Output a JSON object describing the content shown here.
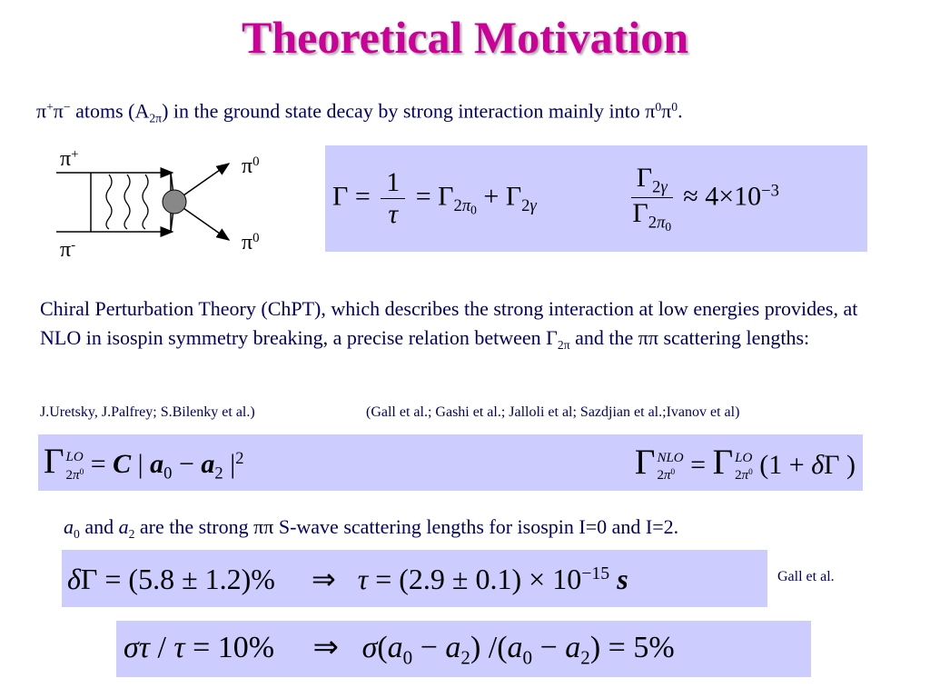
{
  "title": "Theoretical Motivation",
  "intro": [
    {
      "text": "π"
    },
    {
      "text": "+",
      "style": "sup"
    },
    {
      "text": "π"
    },
    {
      "text": "−",
      "style": "sup"
    },
    {
      "text": " atoms (A"
    },
    {
      "text": "2π",
      "style": "sub"
    },
    {
      "text": ") in the ground state decay by strong interaction mainly into π"
    },
    {
      "text": "0",
      "style": "sup"
    },
    {
      "text": "π"
    },
    {
      "text": "0",
      "style": "sup"
    },
    {
      "text": "."
    }
  ],
  "diagram": {
    "in_top": [
      {
        "text": "π"
      },
      {
        "text": "+",
        "style": "sup"
      }
    ],
    "in_bottom": [
      {
        "text": "π"
      },
      {
        "text": "-",
        "style": "sup"
      }
    ],
    "out_top": [
      {
        "text": "π"
      },
      {
        "text": "0",
        "style": "sup"
      }
    ],
    "out_bottom": [
      {
        "text": "π"
      },
      {
        "text": "0",
        "style": "sup"
      }
    ]
  },
  "eq_width": [
    {
      "text": "Γ = "
    },
    {
      "num": [
        {
          "text": "1"
        }
      ],
      "den": [
        {
          "text": "τ",
          "style": "i"
        }
      ]
    },
    {
      "text": " = Γ"
    },
    {
      "text": "2",
      "style": "sub"
    },
    {
      "text": "π",
      "style": "sub i"
    },
    {
      "text": "0",
      "style": "subsub"
    },
    {
      "text": " + Γ"
    },
    {
      "text": "2",
      "style": "sub"
    },
    {
      "text": "γ",
      "style": "sub i"
    }
  ],
  "eq_ratio": [
    {
      "num": [
        {
          "text": "Γ"
        },
        {
          "text": "2",
          "style": "sub"
        },
        {
          "text": "γ",
          "style": "sub i"
        }
      ],
      "den": [
        {
          "text": "Γ"
        },
        {
          "text": "2",
          "style": "sub"
        },
        {
          "text": "π",
          "style": "sub i"
        },
        {
          "text": "0",
          "style": "subsub"
        }
      ]
    },
    {
      "text": " ≈ 4×10"
    },
    {
      "text": "−3",
      "style": "sup"
    }
  ],
  "chpt": [
    {
      "text": "Chiral Perturbation Theory (ChPT), which describes the strong interaction at low energies provides, at NLO in isospin symmetry breaking, a precise relation between Γ"
    },
    {
      "text": "2π",
      "style": "sub"
    },
    {
      "text": " and the ππ scattering lengths:"
    }
  ],
  "refs_left": "J.Uretsky, J.Palfrey; S.Bilenky et al.)",
  "refs_right": "(Gall et al.; Gashi et al.; Jalloli et al; Sazdjian et al.;Ivanov et al)",
  "eq_lo": [
    {
      "base": "Γ",
      "sup": [
        {
          "text": "LO",
          "style": "i"
        }
      ],
      "sub": [
        {
          "text": "2",
          "style": ""
        },
        {
          "text": "π",
          "style": "i"
        },
        {
          "text": "0",
          "style": "sup"
        }
      ]
    },
    {
      "text": " = "
    },
    {
      "text": "C",
      "style": "bi"
    },
    {
      "text": " | "
    },
    {
      "text": "a",
      "style": "bi"
    },
    {
      "text": "0",
      "style": "sub"
    },
    {
      "text": " − "
    },
    {
      "text": "a",
      "style": "bi"
    },
    {
      "text": "2",
      "style": "sub"
    },
    {
      "text": " |"
    },
    {
      "text": "2",
      "style": "sup"
    }
  ],
  "eq_nlo": [
    {
      "base": "Γ",
      "sup": [
        {
          "text": "NLO",
          "style": "i"
        }
      ],
      "sub": [
        {
          "text": "2",
          "style": ""
        },
        {
          "text": "π",
          "style": "i"
        },
        {
          "text": "0",
          "style": "sup"
        }
      ]
    },
    {
      "text": " = "
    },
    {
      "base": "Γ",
      "sup": [
        {
          "text": "LO",
          "style": "i"
        }
      ],
      "sub": [
        {
          "text": "2",
          "style": ""
        },
        {
          "text": "π",
          "style": "i"
        },
        {
          "text": "0",
          "style": "sup"
        }
      ]
    },
    {
      "text": " (1 + "
    },
    {
      "text": "δ",
      "style": "i"
    },
    {
      "text": "Γ )"
    }
  ],
  "scattering": [
    {
      "text": "a",
      "style": "i"
    },
    {
      "text": "0",
      "style": "sub"
    },
    {
      "text": " and "
    },
    {
      "text": "a",
      "style": "i"
    },
    {
      "text": "2",
      "style": "sub"
    },
    {
      "text": " are the strong ππ S-wave scattering lengths for isospin I=0 and I=2."
    }
  ],
  "eq_result": [
    {
      "text": "δ",
      "style": "i"
    },
    {
      "text": "Γ = (5.8 ± 1.2)%     ⇒   "
    },
    {
      "text": "τ",
      "style": "i"
    },
    {
      "text": " = (2.9 ± 0.1) × 10"
    },
    {
      "text": "−15",
      "style": "sup"
    },
    {
      "text": " s",
      "style": "bi"
    }
  ],
  "result_ref": "Gall et al.",
  "eq_goal": [
    {
      "text": "στ",
      "style": "i"
    },
    {
      "text": " / "
    },
    {
      "text": "τ",
      "style": "i"
    },
    {
      "text": " = 10%     ⇒   "
    },
    {
      "text": "σ",
      "style": "i"
    },
    {
      "text": "("
    },
    {
      "text": "a",
      "style": "i"
    },
    {
      "text": "0",
      "style": "sub"
    },
    {
      "text": " − "
    },
    {
      "text": "a",
      "style": "i"
    },
    {
      "text": "2",
      "style": "sub"
    },
    {
      "text": ") /("
    },
    {
      "text": "a",
      "style": "i"
    },
    {
      "text": "0",
      "style": "sub"
    },
    {
      "text": " − "
    },
    {
      "text": "a",
      "style": "i"
    },
    {
      "text": "2",
      "style": "sub"
    },
    {
      "text": ") = 5%"
    }
  ]
}
